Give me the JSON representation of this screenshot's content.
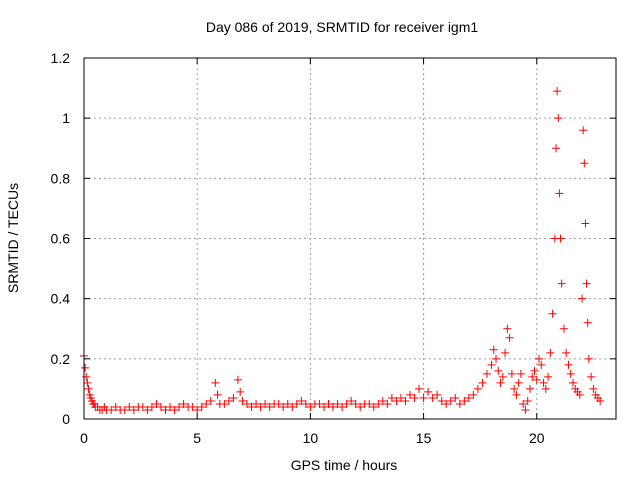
{
  "chart_data": {
    "type": "scatter",
    "title": "Day 086 of 2019, SRMTID for receiver igm1",
    "xlabel": "GPS time / hours",
    "ylabel": "SRMTID / TECUs",
    "xlim": [
      0,
      23.5
    ],
    "ylim": [
      0,
      1.2
    ],
    "xticks": [
      0,
      5,
      10,
      15,
      20
    ],
    "xtick_labels": [
      "0",
      "5",
      "10",
      "15",
      "20"
    ],
    "yticks": [
      0,
      0.2,
      0.4,
      0.6,
      0.8,
      1.0,
      1.2
    ],
    "ytick_labels": [
      "0",
      "0.2",
      "0.4",
      "0.6",
      "0.8",
      "1",
      "1.2"
    ],
    "grid": true,
    "marker": "+",
    "series": [
      {
        "name": "SRMTID",
        "color": "#ff0000",
        "points": [
          [
            0.0,
            0.21
          ],
          [
            0.05,
            0.17
          ],
          [
            0.1,
            0.14
          ],
          [
            0.15,
            0.12
          ],
          [
            0.2,
            0.1
          ],
          [
            0.25,
            0.08
          ],
          [
            0.3,
            0.07
          ],
          [
            0.35,
            0.06
          ],
          [
            0.4,
            0.05
          ],
          [
            0.45,
            0.05
          ],
          [
            0.5,
            0.04
          ],
          [
            0.6,
            0.04
          ],
          [
            0.7,
            0.03
          ],
          [
            0.8,
            0.03
          ],
          [
            0.9,
            0.04
          ],
          [
            1.0,
            0.03
          ],
          [
            1.2,
            0.03
          ],
          [
            1.4,
            0.04
          ],
          [
            1.6,
            0.03
          ],
          [
            1.8,
            0.03
          ],
          [
            2.0,
            0.04
          ],
          [
            2.2,
            0.03
          ],
          [
            2.4,
            0.04
          ],
          [
            2.6,
            0.04
          ],
          [
            2.8,
            0.03
          ],
          [
            3.0,
            0.04
          ],
          [
            3.2,
            0.05
          ],
          [
            3.4,
            0.04
          ],
          [
            3.6,
            0.03
          ],
          [
            3.8,
            0.04
          ],
          [
            4.0,
            0.03
          ],
          [
            4.2,
            0.04
          ],
          [
            4.4,
            0.05
          ],
          [
            4.6,
            0.04
          ],
          [
            4.8,
            0.04
          ],
          [
            5.0,
            0.03
          ],
          [
            5.2,
            0.04
          ],
          [
            5.4,
            0.05
          ],
          [
            5.6,
            0.06
          ],
          [
            5.8,
            0.12
          ],
          [
            5.9,
            0.08
          ],
          [
            6.0,
            0.05
          ],
          [
            6.2,
            0.05
          ],
          [
            6.4,
            0.06
          ],
          [
            6.6,
            0.07
          ],
          [
            6.8,
            0.13
          ],
          [
            6.9,
            0.09
          ],
          [
            7.0,
            0.06
          ],
          [
            7.2,
            0.05
          ],
          [
            7.4,
            0.04
          ],
          [
            7.6,
            0.05
          ],
          [
            7.8,
            0.04
          ],
          [
            8.0,
            0.05
          ],
          [
            8.2,
            0.04
          ],
          [
            8.4,
            0.05
          ],
          [
            8.6,
            0.05
          ],
          [
            8.8,
            0.04
          ],
          [
            9.0,
            0.05
          ],
          [
            9.2,
            0.04
          ],
          [
            9.4,
            0.05
          ],
          [
            9.6,
            0.06
          ],
          [
            9.8,
            0.05
          ],
          [
            10.0,
            0.04
          ],
          [
            10.2,
            0.05
          ],
          [
            10.4,
            0.05
          ],
          [
            10.6,
            0.04
          ],
          [
            10.8,
            0.05
          ],
          [
            11.0,
            0.04
          ],
          [
            11.2,
            0.05
          ],
          [
            11.4,
            0.04
          ],
          [
            11.6,
            0.05
          ],
          [
            11.8,
            0.06
          ],
          [
            12.0,
            0.05
          ],
          [
            12.2,
            0.04
          ],
          [
            12.4,
            0.05
          ],
          [
            12.6,
            0.05
          ],
          [
            12.8,
            0.04
          ],
          [
            13.0,
            0.05
          ],
          [
            13.2,
            0.06
          ],
          [
            13.4,
            0.05
          ],
          [
            13.6,
            0.07
          ],
          [
            13.8,
            0.06
          ],
          [
            14.0,
            0.07
          ],
          [
            14.2,
            0.06
          ],
          [
            14.4,
            0.08
          ],
          [
            14.6,
            0.07
          ],
          [
            14.8,
            0.1
          ],
          [
            15.0,
            0.07
          ],
          [
            15.2,
            0.09
          ],
          [
            15.4,
            0.07
          ],
          [
            15.6,
            0.08
          ],
          [
            15.8,
            0.06
          ],
          [
            16.0,
            0.05
          ],
          [
            16.2,
            0.06
          ],
          [
            16.4,
            0.07
          ],
          [
            16.6,
            0.05
          ],
          [
            16.8,
            0.06
          ],
          [
            17.0,
            0.07
          ],
          [
            17.2,
            0.08
          ],
          [
            17.4,
            0.1
          ],
          [
            17.6,
            0.12
          ],
          [
            17.8,
            0.15
          ],
          [
            18.0,
            0.18
          ],
          [
            18.1,
            0.23
          ],
          [
            18.2,
            0.2
          ],
          [
            18.3,
            0.16
          ],
          [
            18.4,
            0.12
          ],
          [
            18.5,
            0.14
          ],
          [
            18.6,
            0.22
          ],
          [
            18.7,
            0.3
          ],
          [
            18.8,
            0.27
          ],
          [
            18.9,
            0.15
          ],
          [
            19.0,
            0.1
          ],
          [
            19.1,
            0.08
          ],
          [
            19.2,
            0.12
          ],
          [
            19.3,
            0.15
          ],
          [
            19.4,
            0.05
          ],
          [
            19.5,
            0.03
          ],
          [
            19.6,
            0.06
          ],
          [
            19.7,
            0.1
          ],
          [
            19.8,
            0.14
          ],
          [
            19.9,
            0.16
          ],
          [
            20.0,
            0.13
          ],
          [
            20.1,
            0.2
          ],
          [
            20.2,
            0.18
          ],
          [
            20.3,
            0.12
          ],
          [
            20.4,
            0.1
          ],
          [
            20.5,
            0.14
          ],
          [
            20.6,
            0.22
          ],
          [
            20.7,
            0.35
          ],
          [
            20.8,
            0.6
          ],
          [
            20.85,
            0.9
          ],
          [
            20.9,
            1.09
          ],
          [
            20.95,
            1.0
          ],
          [
            21.0,
            0.75
          ],
          [
            21.05,
            0.6
          ],
          [
            21.1,
            0.45
          ],
          [
            21.2,
            0.3
          ],
          [
            21.3,
            0.22
          ],
          [
            21.4,
            0.18
          ],
          [
            21.5,
            0.15
          ],
          [
            21.6,
            0.12
          ],
          [
            21.7,
            0.1
          ],
          [
            21.8,
            0.09
          ],
          [
            21.9,
            0.08
          ],
          [
            22.0,
            0.4
          ],
          [
            22.05,
            0.96
          ],
          [
            22.1,
            0.85
          ],
          [
            22.15,
            0.65
          ],
          [
            22.2,
            0.45
          ],
          [
            22.25,
            0.32
          ],
          [
            22.3,
            0.2
          ],
          [
            22.4,
            0.14
          ],
          [
            22.5,
            0.1
          ],
          [
            22.6,
            0.08
          ],
          [
            22.7,
            0.07
          ],
          [
            22.8,
            0.06
          ]
        ]
      }
    ]
  }
}
